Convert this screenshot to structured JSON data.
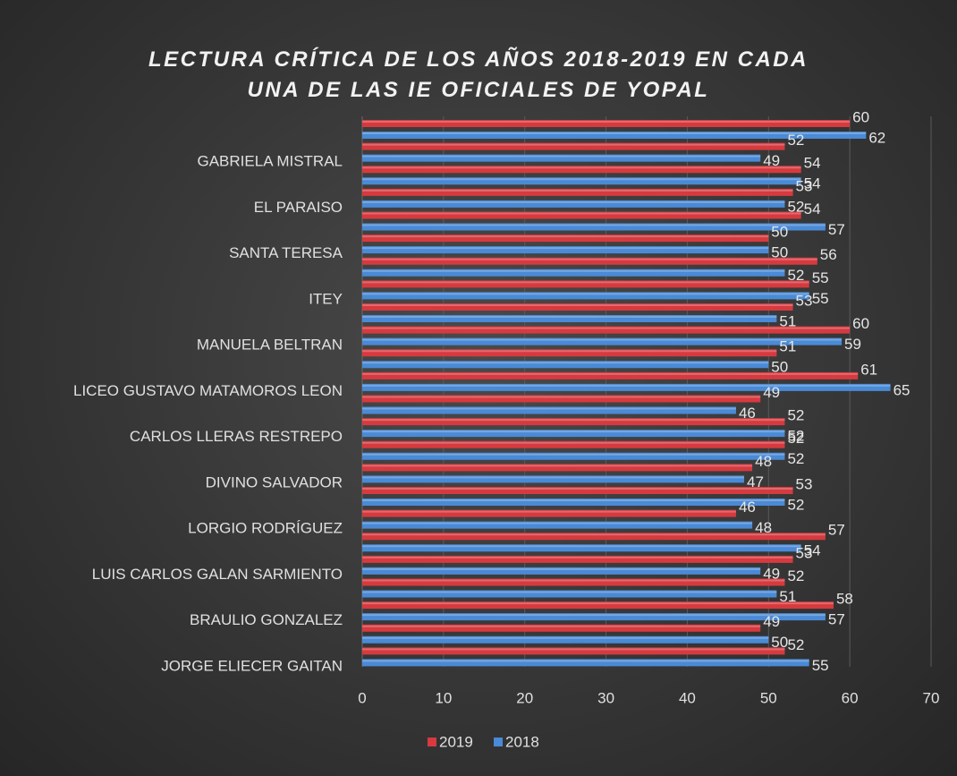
{
  "chart_data": {
    "type": "bar",
    "orientation": "horizontal",
    "title": "LECTURA CRÍTICA DE LOS AÑOS 2018-2019 EN CADA UNA DE LAS IE OFICIALES DE YOPAL",
    "categories": [
      null,
      "GABRIELA MISTRAL",
      null,
      "EL PARAISO",
      null,
      "SANTA TERESA",
      null,
      "ITEY",
      null,
      "MANUELA BELTRAN",
      null,
      "LICEO GUSTAVO MATAMOROS LEON",
      null,
      "CARLOS LLERAS RESTREPO",
      null,
      "DIVINO SALVADOR",
      null,
      "LORGIO RODRÍGUEZ",
      null,
      "LUIS CARLOS GALAN SARMIENTO",
      null,
      "BRAULIO GONZALEZ",
      null,
      "JORGE ELIECER GAITAN"
    ],
    "series": [
      {
        "name": "2019",
        "color": "#d63a3f",
        "values": [
          60,
          52,
          54,
          53,
          54,
          50,
          56,
          55,
          53,
          60,
          51,
          61,
          49,
          52,
          52,
          48,
          53,
          46,
          57,
          53,
          52,
          58,
          49,
          52
        ]
      },
      {
        "name": "2018",
        "color": "#4a8ad6",
        "values": [
          62,
          49,
          54,
          52,
          57,
          50,
          52,
          55,
          51,
          59,
          50,
          65,
          46,
          52,
          52,
          47,
          52,
          48,
          54,
          49,
          51,
          57,
          50,
          55
        ]
      }
    ],
    "xlim": [
      0,
      70
    ],
    "xticks": [
      0,
      10,
      20,
      30,
      40,
      50,
      60,
      70
    ],
    "grid": true,
    "legend": "bottom"
  }
}
